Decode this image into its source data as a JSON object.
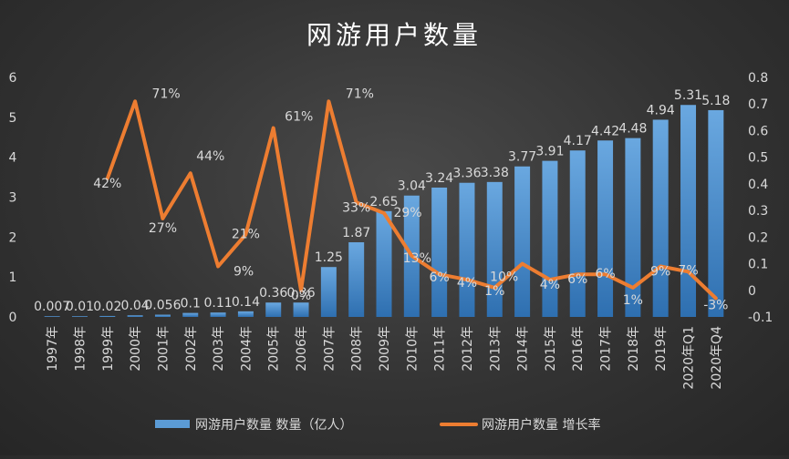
{
  "chart_data": {
    "type": "bar+line",
    "title": "网游用户数量",
    "categories": [
      "1997年",
      "1998年",
      "1999年",
      "2000年",
      "2001年",
      "2002年",
      "2003年",
      "2004年",
      "2005年",
      "2006年",
      "2007年",
      "2008年",
      "2009年",
      "2010年",
      "2011年",
      "2012年",
      "2013年",
      "2014年",
      "2015年",
      "2016年",
      "2017年",
      "2018年",
      "2019年",
      "2020年Q1",
      "2020年Q4"
    ],
    "series": [
      {
        "name": "网游用户数量 数量（亿人）",
        "type": "bar",
        "axis": "left",
        "values": [
          0.007,
          0.01,
          0.024,
          0.04,
          0.056,
          0.1,
          0.11,
          0.14,
          0.36,
          0.36,
          1.25,
          1.87,
          2.65,
          3.04,
          3.24,
          3.36,
          3.38,
          3.77,
          3.91,
          4.17,
          4.42,
          4.48,
          4.94,
          5.31,
          5.18
        ],
        "labels": [
          "0.007",
          "0.01",
          "0.02",
          "0.04",
          "0.056",
          "0.1",
          "0.11",
          "0.14",
          "0.36",
          "0.36",
          "1.25",
          "1.87",
          "2.65",
          "3.04",
          "3.24",
          "3.36",
          "3.38",
          "3.77",
          "3.91",
          "4.17",
          "4.42",
          "4.48",
          "4.94",
          "5.31",
          "5.18"
        ]
      },
      {
        "name": "网游用户数量 增长率",
        "type": "line",
        "axis": "right",
        "values": [
          null,
          null,
          0.42,
          0.71,
          0.27,
          0.44,
          0.09,
          0.21,
          0.61,
          0.0,
          0.71,
          0.33,
          0.29,
          0.13,
          0.06,
          0.04,
          0.01,
          0.1,
          0.04,
          0.06,
          0.06,
          0.01,
          0.09,
          0.07,
          -0.03
        ],
        "labels": [
          null,
          null,
          "42%",
          "71%",
          "27%",
          "44%",
          "9%",
          "21%",
          "61%",
          "0%",
          "71%",
          "33%",
          "29%",
          "13%",
          "6%",
          "4%",
          "1%",
          "10%",
          "4%",
          "6%",
          "6%",
          "1%",
          "9%",
          "7%",
          "-3%"
        ]
      }
    ],
    "y_left": {
      "min": 0,
      "max": 6,
      "ticks": [
        "0",
        "1",
        "2",
        "3",
        "4",
        "5",
        "6"
      ]
    },
    "y_right": {
      "min": -0.1,
      "max": 0.8,
      "ticks": [
        "-0.1",
        "0",
        "0.1",
        "0.2",
        "0.3",
        "0.4",
        "0.5",
        "0.6",
        "0.7",
        "0.8"
      ]
    },
    "legend": {
      "position": "bottom"
    },
    "grid": false,
    "colors": {
      "bar_top": "#5b9bd5",
      "bar_bottom": "#2e6fb0",
      "line": "#ed7d31",
      "text": "#d9d9d9",
      "title": "#ffffff",
      "background": "#333333"
    }
  }
}
